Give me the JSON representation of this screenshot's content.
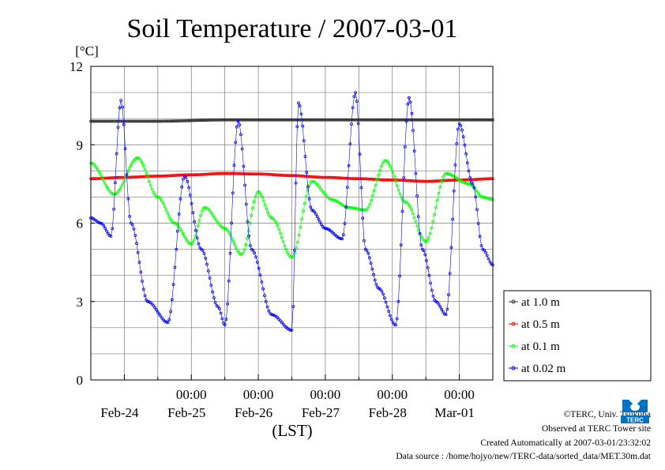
{
  "chart_data": {
    "type": "line",
    "title": "Soil Temperature / 2007-03-01",
    "ylabel": "[°C]",
    "xlabel": "(LST)",
    "ylim": [
      0,
      12
    ],
    "yticks": [
      0,
      3,
      6,
      9,
      12
    ],
    "xlim": [
      0,
      6
    ],
    "x_unit": "days from 2007-02-23 12:00 LST",
    "x_tick_top": [
      "00:00",
      "00:00",
      "00:00",
      "00:00",
      "00:00"
    ],
    "x_tick_bottom": [
      "Feb-24",
      "Feb-25",
      "Feb-26",
      "Feb-27",
      "Feb-28",
      "Mar-01"
    ],
    "grid": true,
    "legend_position": "right",
    "series": [
      {
        "name": "at 1.0 m",
        "color": "#333333",
        "marker": "o",
        "x": [
          0,
          1,
          2,
          3,
          4,
          5,
          6
        ],
        "y": [
          9.9,
          9.9,
          9.95,
          9.95,
          9.95,
          9.95,
          9.95
        ]
      },
      {
        "name": "at 0.5 m",
        "color": "#ff0000",
        "marker": "o",
        "x": [
          0,
          0.5,
          1,
          1.5,
          2,
          2.5,
          3,
          3.5,
          4,
          4.5,
          5,
          5.5,
          6
        ],
        "y": [
          7.7,
          7.75,
          7.8,
          7.85,
          7.9,
          7.88,
          7.82,
          7.75,
          7.7,
          7.65,
          7.6,
          7.65,
          7.7
        ]
      },
      {
        "name": "at 0.1 m",
        "color": "#00ff00",
        "marker": "o",
        "x": [
          0,
          0.35,
          0.7,
          1.0,
          1.25,
          1.5,
          1.7,
          2.0,
          2.25,
          2.5,
          2.7,
          3.0,
          3.3,
          3.6,
          3.85,
          4.1,
          4.4,
          4.7,
          5.0,
          5.3,
          5.65,
          5.85,
          6.0
        ],
        "y": [
          8.3,
          7.1,
          8.5,
          7.0,
          6.0,
          5.2,
          6.6,
          5.8,
          4.8,
          7.2,
          6.2,
          4.7,
          7.6,
          6.9,
          6.6,
          6.5,
          8.4,
          6.8,
          5.3,
          7.9,
          7.5,
          7.0,
          6.9
        ]
      },
      {
        "name": "at 0.02 m",
        "color": "#0000ff",
        "marker": "o",
        "x": [
          0,
          0.15,
          0.3,
          0.45,
          0.6,
          0.85,
          1.15,
          1.4,
          1.65,
          1.9,
          2.0,
          2.2,
          2.4,
          2.7,
          3.0,
          3.1,
          3.3,
          3.5,
          3.75,
          3.95,
          4.1,
          4.3,
          4.55,
          4.75,
          4.95,
          5.15,
          5.3,
          5.5,
          5.7,
          5.85,
          6.0
        ],
        "y": [
          6.2,
          6.0,
          5.5,
          10.7,
          6.0,
          3.0,
          2.2,
          7.8,
          5.0,
          2.8,
          2.1,
          9.9,
          5.0,
          2.5,
          1.9,
          10.6,
          6.5,
          5.8,
          5.4,
          11.0,
          5.0,
          3.5,
          2.1,
          10.8,
          5.0,
          3.0,
          2.5,
          9.8,
          7.5,
          5.0,
          4.4
        ]
      }
    ]
  },
  "footer": {
    "copyright": "©TERC, Univ. Tsukuba",
    "observed": "Observed at TERC Tower site",
    "created": "Created Automatically at 2007-03-01/23:32:02",
    "source": "Data source : /home/hojyo/new/TERC-data/sorted_data/MET.30m.dat"
  },
  "logo": {
    "name": "terc-logo",
    "text": "TERC",
    "color": "#0070c0"
  }
}
